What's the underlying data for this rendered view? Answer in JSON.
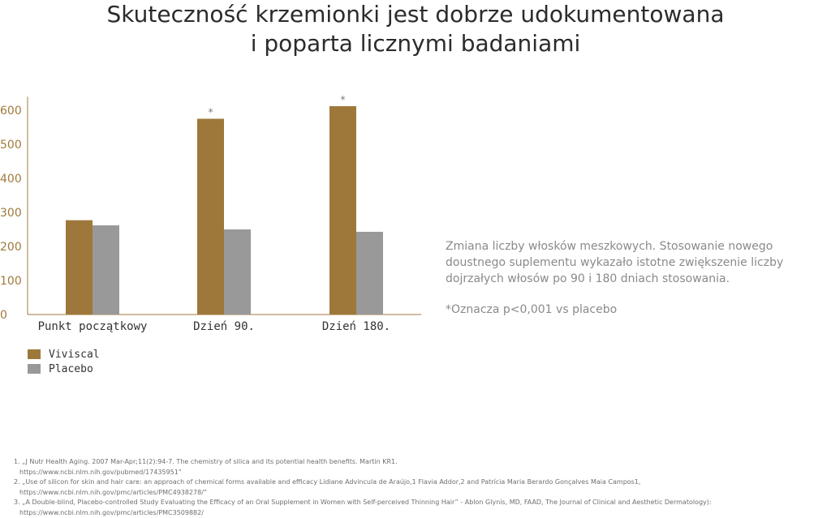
{
  "title": {
    "line1": "Skuteczność krzemionki jest dobrze udokumentowana",
    "line2": "i poparta licznymi badaniami"
  },
  "colors": {
    "viviscal": "#9e783a",
    "placebo": "#999999",
    "axis": "#a07a3c"
  },
  "chart_data": {
    "type": "bar",
    "categories": [
      "Punkt początkowy",
      "Dzień 90.",
      "Dzień 180."
    ],
    "series": [
      {
        "name": "Viviscal",
        "values": [
          277,
          575,
          612
        ]
      },
      {
        "name": "Placebo",
        "values": [
          262,
          250,
          243
        ]
      }
    ],
    "annotations": [
      "",
      "*",
      "*"
    ],
    "yticks": [
      "0",
      "100",
      "200",
      "300",
      "400",
      "500",
      "600"
    ],
    "ylim": [
      0,
      640
    ],
    "grid": false,
    "legend_position": "bottom-left"
  },
  "note": {
    "text": "Zmiana liczby włosków meszkowych. Stosowanie nowego doustnego suplementu wykazało istotne zwiększenie liczby dojrzałych włosów po 90 i 180 dniach stosowania.",
    "footnote": "*Oznacza p<0,001 vs placebo"
  },
  "references": [
    {
      "text": "1. „J Nutr Health Aging. 2007 Mar-Apr;11(2):94-7. The chemistry of silica and its potential health benefits. Martin KR1.",
      "url": "https://www.ncbi.nlm.nih.gov/pubmed/17435951”"
    },
    {
      "text": "2. „Use of silicon for skin and hair care: an approach of chemical forms available and efficacy Lidiane Advincula de Araújo,1 Flavia Addor,2 and Patrícia Maria Berardo Gonçalves Maia Campos1,",
      "url": "https://www.ncbi.nlm.nih.gov/pmc/articles/PMC4938278/”"
    },
    {
      "text": "3. „A Double-blind, Placebo-controlled Study Evaluating the Efficacy of an Oral Supplement in Women with Self-perceived Thinning Hair” - Ablon Glynis, MD, FAAD, The Journal of Clinical and Aesthetic Dermatology):",
      "url": "https://www.ncbi.nlm.nih.gov/pmc/articles/PMC3509882/"
    }
  ]
}
